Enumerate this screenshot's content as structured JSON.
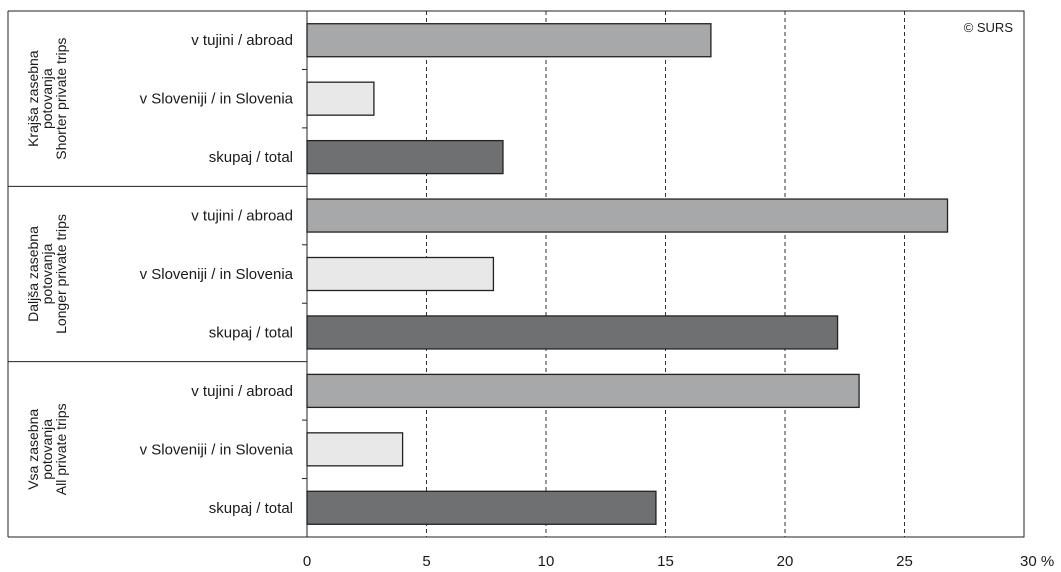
{
  "chart_data": {
    "type": "bar",
    "orientation": "horizontal",
    "credit": "© SURS",
    "xlim": [
      0,
      30
    ],
    "x_ticks": [
      0,
      5,
      10,
      15,
      20,
      25,
      30
    ],
    "x_tick_labels": [
      "0",
      "5",
      "10",
      "15",
      "20",
      "25",
      "30 %"
    ],
    "grid": "vertical dashed",
    "groups": [
      {
        "label_lines": [
          "Krajša zasebna",
          "potovanja",
          "Shorter private trips"
        ],
        "bars": [
          {
            "label": "v tujini / abroad",
            "value": 16.9,
            "color": "#a7a8aa"
          },
          {
            "label": "v Sloveniji / in Slovenia",
            "value": 2.8,
            "color": "#e8e8e8"
          },
          {
            "label": "skupaj / total",
            "value": 8.2,
            "color": "#6f7072"
          }
        ]
      },
      {
        "label_lines": [
          "Daljša zasebna",
          "potovanja",
          "Longer private trips"
        ],
        "bars": [
          {
            "label": "v tujini / abroad",
            "value": 26.8,
            "color": "#a7a8aa"
          },
          {
            "label": "v Sloveniji / in Slovenia",
            "value": 7.8,
            "color": "#e8e8e8"
          },
          {
            "label": "skupaj / total",
            "value": 22.2,
            "color": "#6f7072"
          }
        ]
      },
      {
        "label_lines": [
          "Vsa zasebna",
          "potovanja",
          "All private trips"
        ],
        "bars": [
          {
            "label": "v tujini / abroad",
            "value": 23.1,
            "color": "#a7a8aa"
          },
          {
            "label": "v Sloveniji / in Slovenia",
            "value": 4.0,
            "color": "#e8e8e8"
          },
          {
            "label": "skupaj / total",
            "value": 14.6,
            "color": "#6f7072"
          }
        ]
      }
    ]
  }
}
